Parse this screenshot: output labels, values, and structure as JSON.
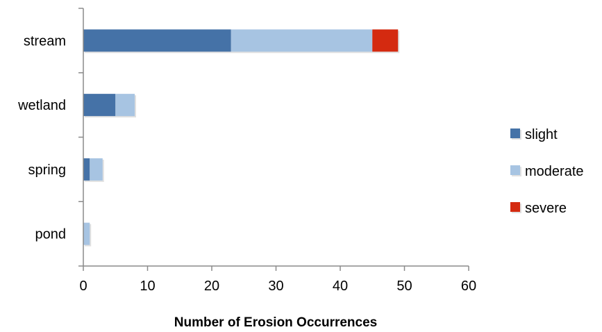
{
  "chart_data": {
    "type": "bar",
    "orientation": "horizontal",
    "stacked": true,
    "title": "",
    "xlabel": "Number of Erosion Occurrences",
    "ylabel": "",
    "categories": [
      "stream",
      "wetland",
      "spring",
      "pond"
    ],
    "series": [
      {
        "name": "slight",
        "color": "#4572a7",
        "values": [
          23,
          5,
          1,
          0
        ]
      },
      {
        "name": "moderate",
        "color": "#a7c4e2",
        "values": [
          22,
          3,
          2,
          1
        ]
      },
      {
        "name": "severe",
        "color": "#d42a10",
        "values": [
          4,
          0,
          0,
          0
        ]
      }
    ],
    "xlim": [
      0,
      60
    ],
    "xticks": [
      "0",
      "10",
      "20",
      "30",
      "40",
      "50",
      "60"
    ],
    "grid": false,
    "legend_position": "right"
  }
}
